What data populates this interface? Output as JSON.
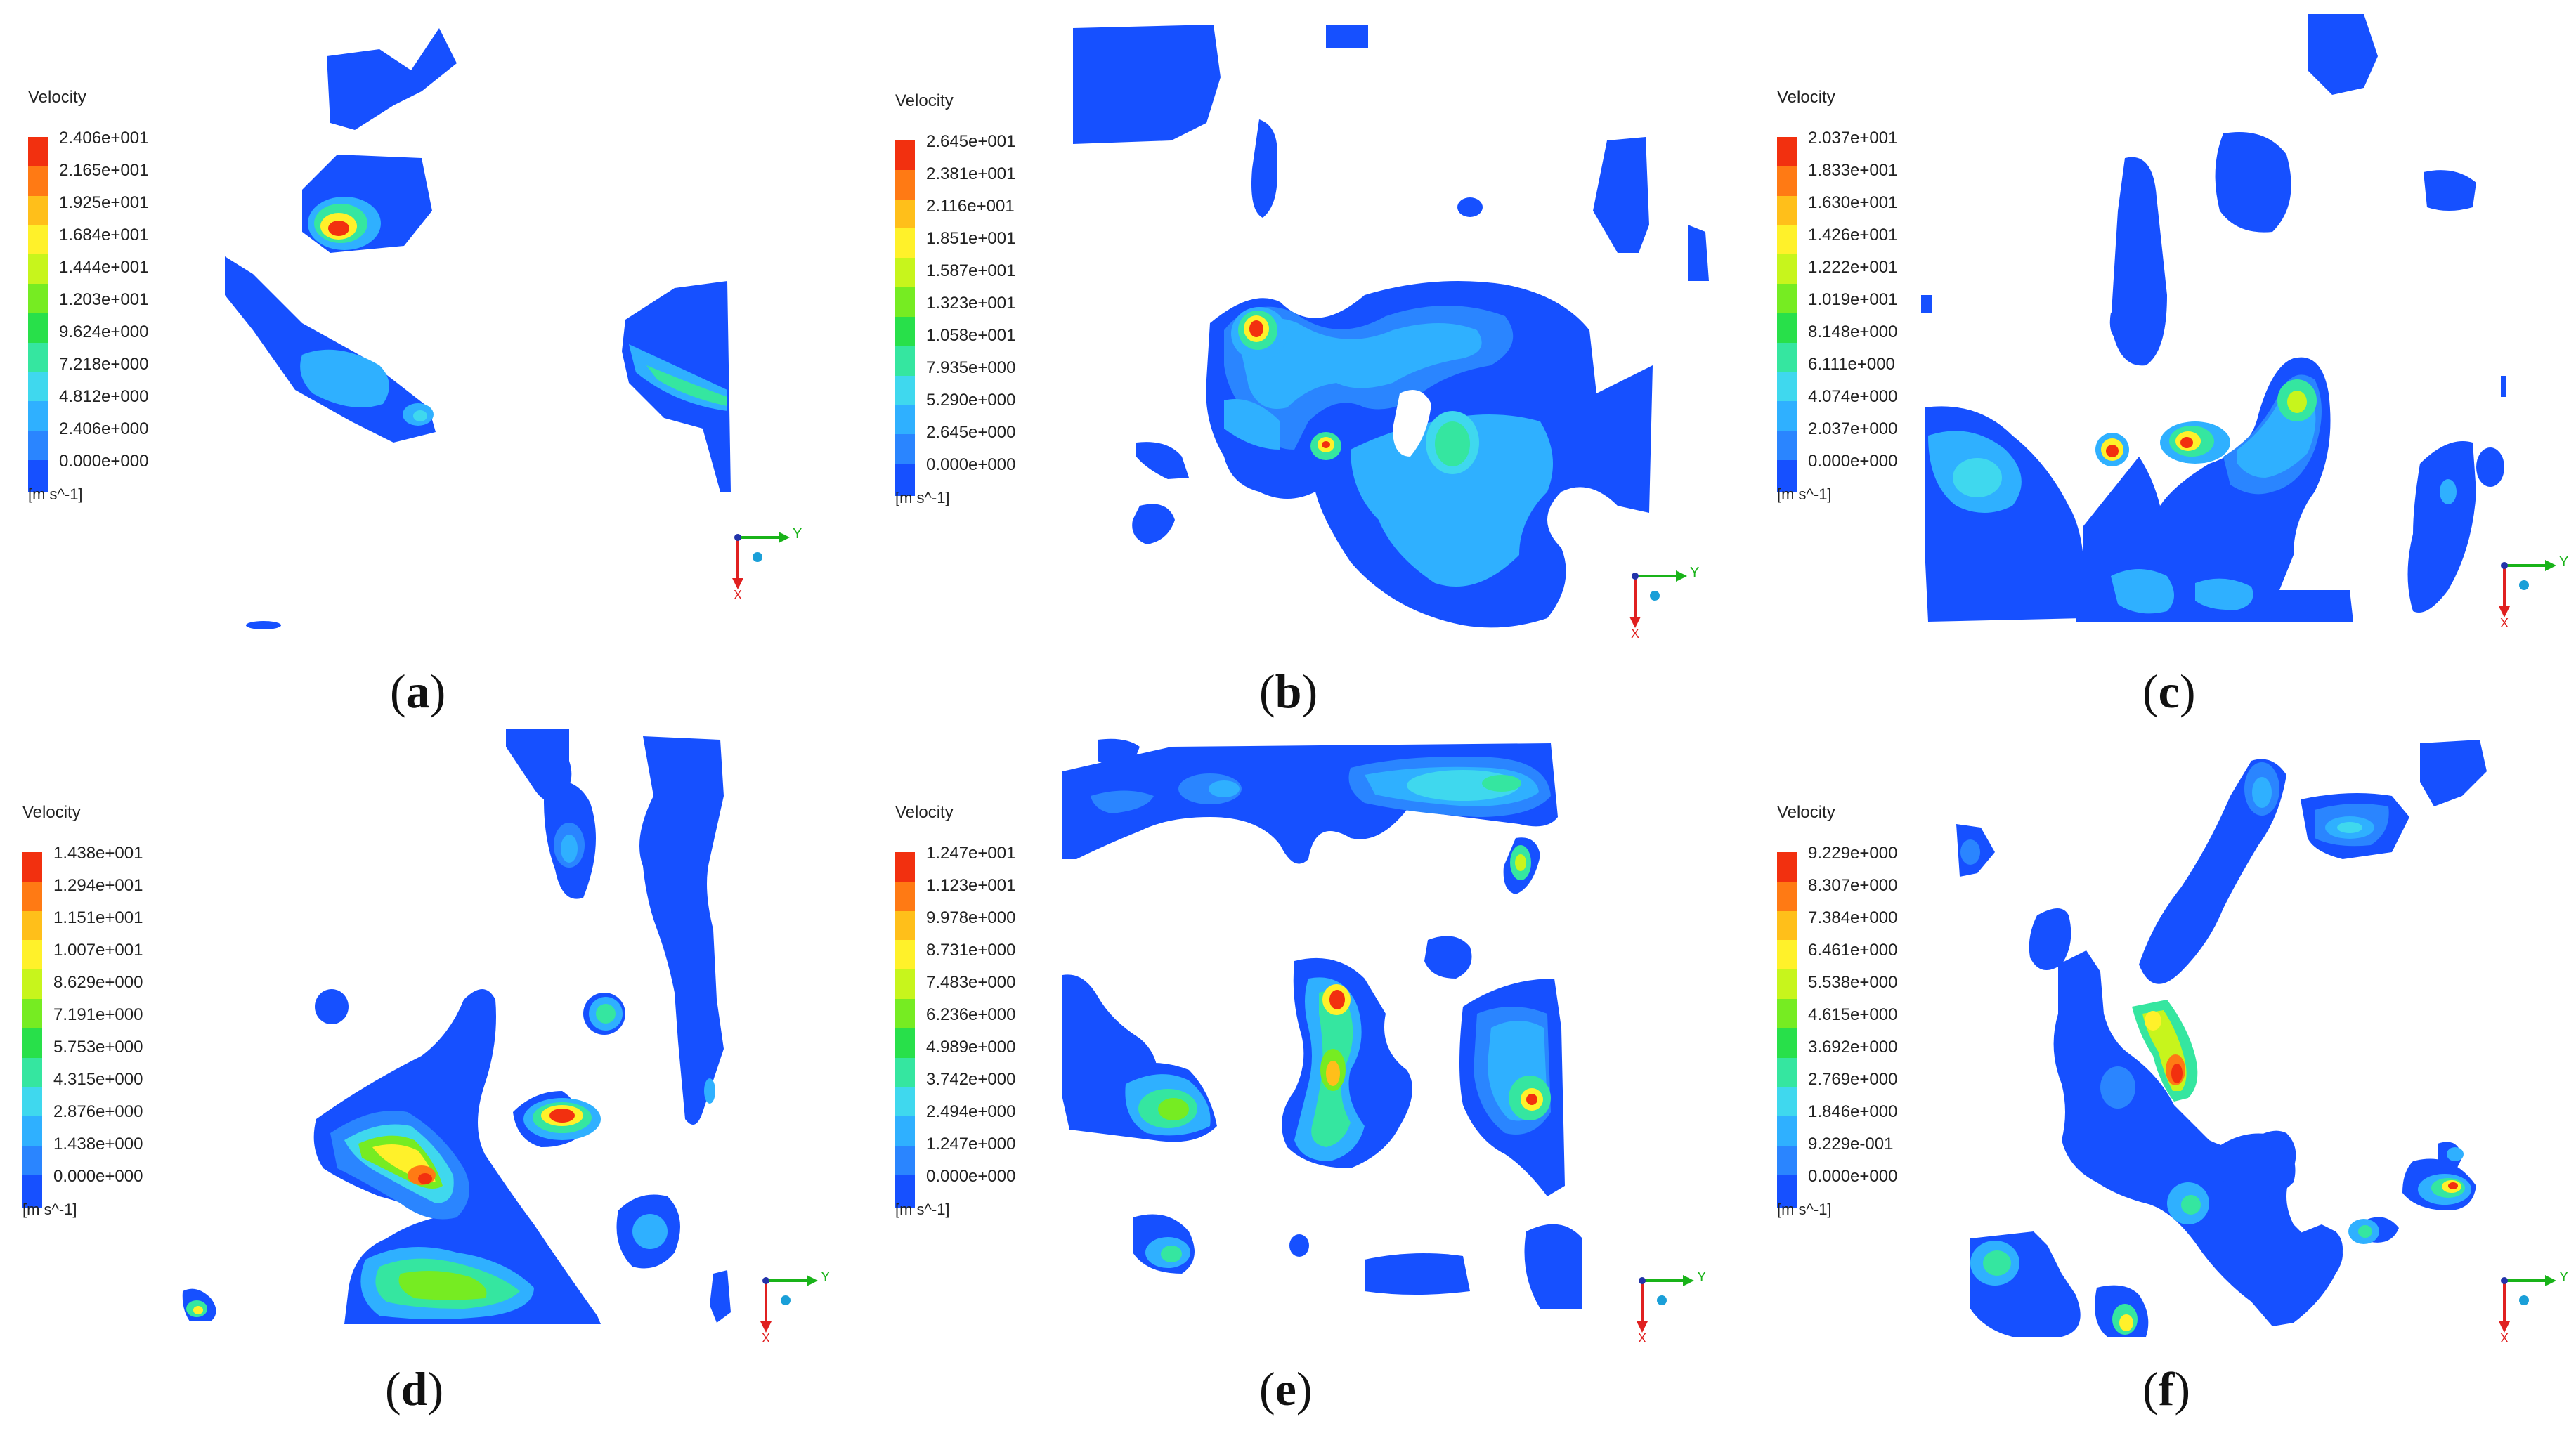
{
  "colors": {
    "base_blue": "#1650ff",
    "levels": [
      "#1650ff",
      "#2a85ff",
      "#2fb0ff",
      "#3fd8ee",
      "#35e6a0",
      "#28e04a",
      "#76ec22",
      "#c7f51c",
      "#fff12a",
      "#ffbf1a",
      "#ff7a14",
      "#f2300f"
    ],
    "axis_y": "#19b319",
    "axis_x": "#e02020",
    "axis_z": "#1a9fd8"
  },
  "panels": [
    {
      "caption_letter": "a",
      "legend_title": "Velocity",
      "ticks": [
        "2.406e+001",
        "2.165e+001",
        "1.925e+001",
        "1.684e+001",
        "1.444e+001",
        "1.203e+001",
        "9.624e+000",
        "7.218e+000",
        "4.812e+000",
        "2.406e+000",
        "0.000e+000"
      ],
      "unit": "[m s^-1]",
      "axis_label_y": "Y",
      "axis_label_x": "X"
    },
    {
      "caption_letter": "b",
      "legend_title": "Velocity",
      "ticks": [
        "2.645e+001",
        "2.381e+001",
        "2.116e+001",
        "1.851e+001",
        "1.587e+001",
        "1.323e+001",
        "1.058e+001",
        "7.935e+000",
        "5.290e+000",
        "2.645e+000",
        "0.000e+000"
      ],
      "unit": "[m s^-1]",
      "axis_label_y": "Y",
      "axis_label_x": "X"
    },
    {
      "caption_letter": "c",
      "legend_title": "Velocity",
      "ticks": [
        "2.037e+001",
        "1.833e+001",
        "1.630e+001",
        "1.426e+001",
        "1.222e+001",
        "1.019e+001",
        "8.148e+000",
        "6.111e+000",
        "4.074e+000",
        "2.037e+000",
        "0.000e+000"
      ],
      "unit": "[m s^-1]",
      "axis_label_y": "Y",
      "axis_label_x": "X"
    },
    {
      "caption_letter": "d",
      "legend_title": "Velocity",
      "ticks": [
        "1.438e+001",
        "1.294e+001",
        "1.151e+001",
        "1.007e+001",
        "8.629e+000",
        "7.191e+000",
        "5.753e+000",
        "4.315e+000",
        "2.876e+000",
        "1.438e+000",
        "0.000e+000"
      ],
      "unit": "[m s^-1]",
      "axis_label_y": "Y",
      "axis_label_x": "X"
    },
    {
      "caption_letter": "e",
      "legend_title": "Velocity",
      "ticks": [
        "1.247e+001",
        "1.123e+001",
        "9.978e+000",
        "8.731e+000",
        "7.483e+000",
        "6.236e+000",
        "4.989e+000",
        "3.742e+000",
        "2.494e+000",
        "1.247e+000",
        "0.000e+000"
      ],
      "unit": "[m s^-1]",
      "axis_label_y": "Y",
      "axis_label_x": "X"
    },
    {
      "caption_letter": "f",
      "legend_title": "Velocity",
      "ticks": [
        "9.229e+000",
        "8.307e+000",
        "7.384e+000",
        "6.461e+000",
        "5.538e+000",
        "4.615e+000",
        "3.692e+000",
        "2.769e+000",
        "1.846e+000",
        "9.229e-001",
        "0.000e+000"
      ],
      "unit": "[m s^-1]",
      "axis_label_y": "Y",
      "axis_label_x": "X"
    }
  ]
}
